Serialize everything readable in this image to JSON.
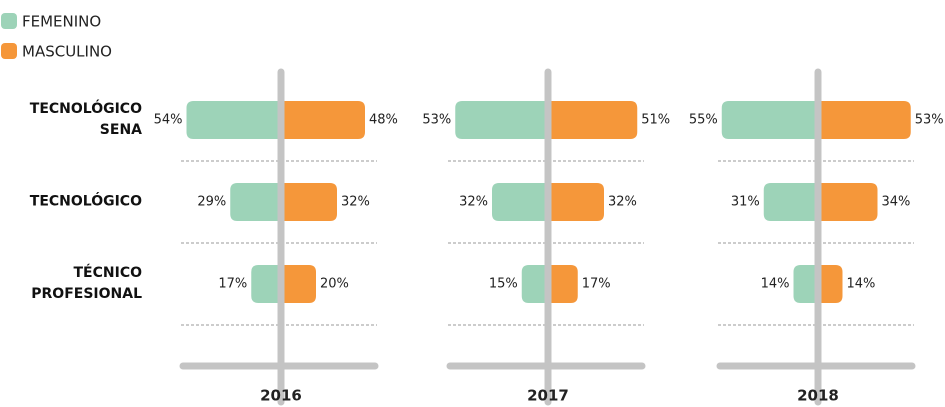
{
  "chart_data": {
    "type": "butterfly",
    "categories": [
      "TECNOLÓGICO SENA",
      "TECNOLÓGICO",
      "TÉCNICO PROFESIONAL"
    ],
    "legend": [
      {
        "name": "FEMENINO",
        "color": "#9dd3b8"
      },
      {
        "name": "MASCULINO",
        "color": "#f5973a"
      }
    ],
    "panels": [
      {
        "title": "2016",
        "series": [
          {
            "values": [
              54,
              29,
              17
            ],
            "value_labels": [
              "54%",
              "29%",
              "17%"
            ]
          },
          {
            "values": [
              48,
              32,
              20
            ],
            "value_labels": [
              "48%",
              "32%",
              "20%"
            ]
          }
        ]
      },
      {
        "title": "2017",
        "series": [
          {
            "values": [
              53,
              32,
              15
            ],
            "value_labels": [
              "53%",
              "32%",
              "15%"
            ]
          },
          {
            "values": [
              51,
              32,
              17
            ],
            "value_labels": [
              "51%",
              "32%",
              "17%"
            ]
          }
        ]
      },
      {
        "title": "2018",
        "series": [
          {
            "values": [
              55,
              31,
              14
            ],
            "value_labels": [
              "55%",
              "31%",
              "14%"
            ]
          },
          {
            "values": [
              53,
              34,
              14
            ],
            "value_labels": [
              "53%",
              "34%",
              "14%"
            ]
          }
        ]
      }
    ]
  }
}
